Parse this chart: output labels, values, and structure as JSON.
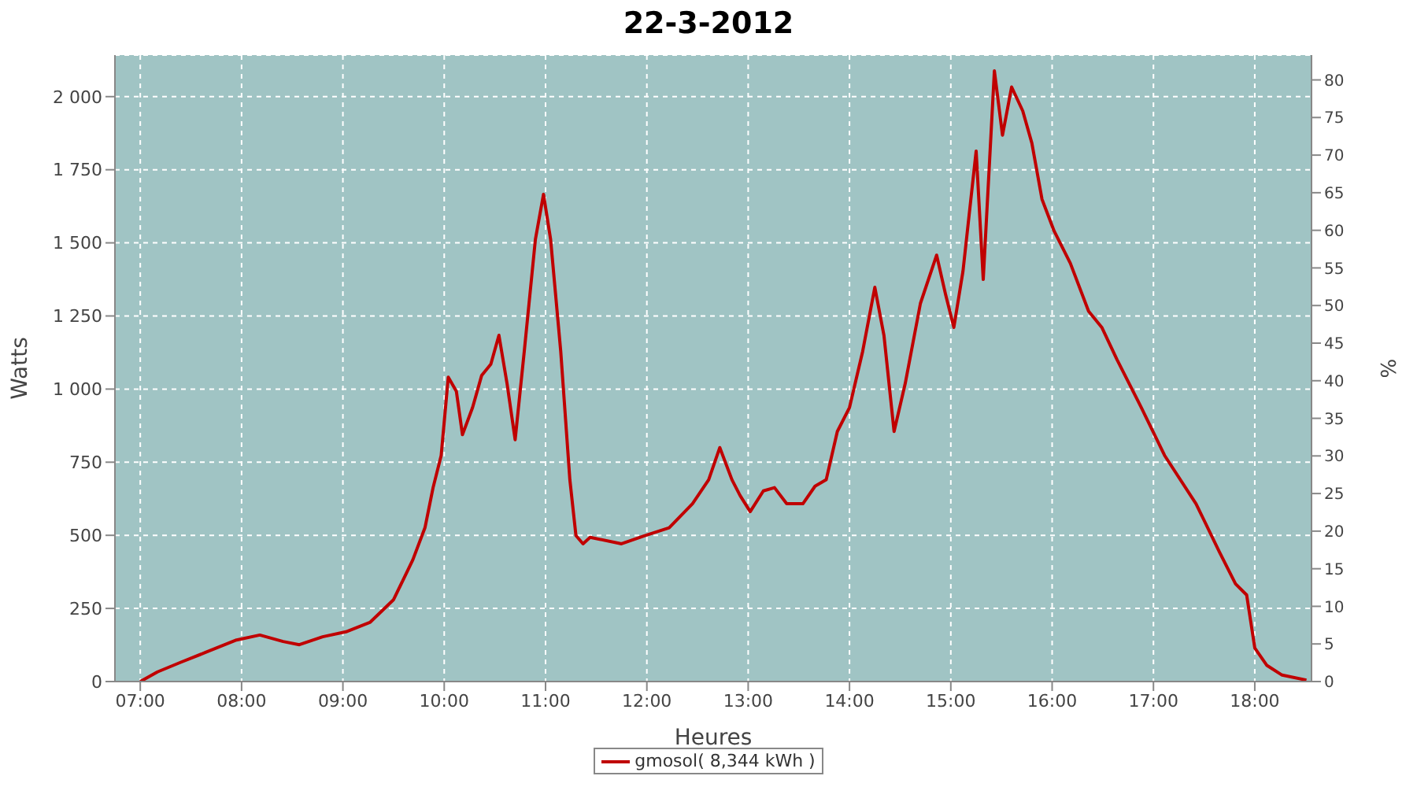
{
  "chart_data": {
    "type": "line",
    "title": "22-3-2012",
    "xlabel": "Heures",
    "ylabel": "Watts",
    "y2label": "%",
    "x": [
      7.0,
      7.17,
      7.4,
      7.64,
      7.79,
      7.95,
      8.18,
      8.41,
      8.57,
      8.8,
      9.03,
      9.27,
      9.5,
      9.69,
      9.81,
      9.89,
      9.97,
      10.04,
      10.12,
      10.18,
      10.28,
      10.37,
      10.46,
      10.54,
      10.62,
      10.7,
      10.79,
      10.9,
      10.98,
      11.05,
      11.15,
      11.24,
      11.3,
      11.37,
      11.44,
      11.75,
      11.98,
      12.22,
      12.45,
      12.61,
      12.72,
      12.84,
      12.92,
      13.02,
      13.15,
      13.26,
      13.38,
      13.54,
      13.66,
      13.77,
      13.88,
      14.0,
      14.13,
      14.25,
      14.34,
      14.44,
      14.55,
      14.7,
      14.86,
      14.95,
      15.03,
      15.12,
      15.25,
      15.32,
      15.43,
      15.51,
      15.6,
      15.71,
      15.8,
      15.9,
      16.02,
      16.18,
      16.36,
      16.49,
      16.64,
      16.88,
      17.11,
      17.42,
      17.65,
      17.81,
      17.92,
      18.0,
      18.12,
      18.27,
      18.51
    ],
    "series": [
      {
        "name": "gmosol( 8,344 kWh )",
        "color": "#c00000",
        "values": [
          0,
          33,
          66,
          99,
          120,
          142,
          159,
          137,
          126,
          153,
          170,
          203,
          280,
          416,
          526,
          663,
          773,
          1041,
          992,
          844,
          937,
          1047,
          1085,
          1184,
          1019,
          827,
          1129,
          1512,
          1666,
          1512,
          1129,
          690,
          499,
          471,
          493,
          471,
          499,
          526,
          608,
          690,
          800,
          690,
          636,
          581,
          652,
          663,
          608,
          608,
          668,
          690,
          855,
          937,
          1129,
          1348,
          1184,
          855,
          1019,
          1293,
          1458,
          1321,
          1211,
          1403,
          1814,
          1375,
          2088,
          1868,
          2033,
          1951,
          1841,
          1649,
          1540,
          1430,
          1266,
          1211,
          1101,
          937,
          773,
          608,
          444,
          334,
          296,
          115,
          55,
          22,
          5
        ]
      }
    ],
    "xlim": [
      6.75,
      18.56
    ],
    "xticks": [
      {
        "value": 7,
        "label": "07:00"
      },
      {
        "value": 8,
        "label": "08:00"
      },
      {
        "value": 9,
        "label": "09:00"
      },
      {
        "value": 10,
        "label": "10:00"
      },
      {
        "value": 11,
        "label": "11:00"
      },
      {
        "value": 12,
        "label": "12:00"
      },
      {
        "value": 13,
        "label": "13:00"
      },
      {
        "value": 14,
        "label": "14:00"
      },
      {
        "value": 15,
        "label": "15:00"
      },
      {
        "value": 16,
        "label": "16:00"
      },
      {
        "value": 17,
        "label": "17:00"
      },
      {
        "value": 18,
        "label": "18:00"
      }
    ],
    "ylim": [
      0,
      2142
    ],
    "yticks": [
      0,
      250,
      500,
      750,
      {
        "value": 1000,
        "label": "1 000"
      },
      {
        "value": 1250,
        "label": "1 250"
      },
      {
        "value": 1500,
        "label": "1 500"
      },
      {
        "value": 1750,
        "label": "1 750"
      },
      {
        "value": 2000,
        "label": "2 000"
      }
    ],
    "y2lim": [
      0,
      83.3
    ],
    "y2ticks": [
      0,
      5,
      10,
      15,
      20,
      25,
      30,
      35,
      40,
      45,
      50,
      55,
      60,
      65,
      70,
      75,
      80
    ],
    "grid": true,
    "legend": "bottom",
    "marker": "none",
    "line_style": "solid"
  }
}
